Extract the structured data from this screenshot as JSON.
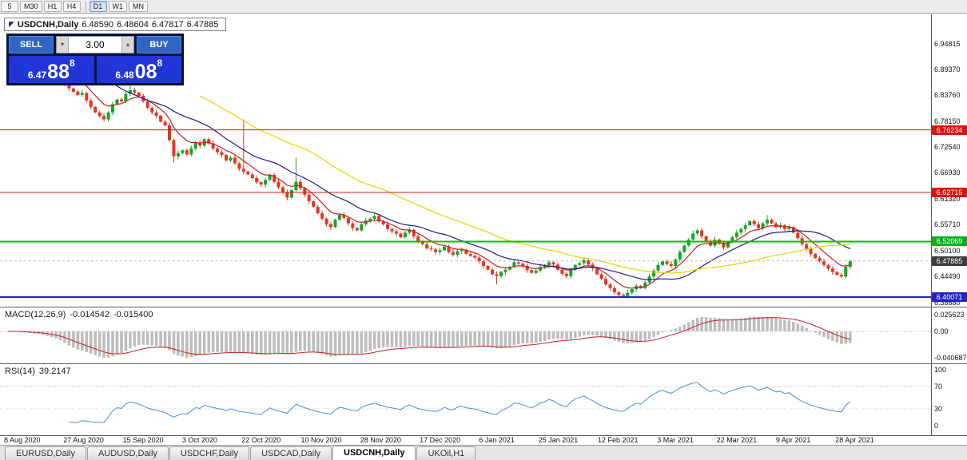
{
  "toolbar": {
    "timeframes": [
      {
        "label": "5",
        "active": false,
        "sep_before": false
      },
      {
        "label": "M30",
        "active": false,
        "sep_before": false
      },
      {
        "label": "H1",
        "active": false,
        "sep_before": false
      },
      {
        "label": "H4",
        "active": false,
        "sep_before": false
      },
      {
        "label": "D1",
        "active": true,
        "sep_before": true
      },
      {
        "label": "W1",
        "active": false,
        "sep_before": false
      },
      {
        "label": "MN",
        "active": false,
        "sep_before": false
      }
    ]
  },
  "icons": {
    "volume_up": "▴",
    "volume_down": "▾",
    "window_restore": "◤"
  },
  "chart_header": {
    "symbol_period": "USDCNH,Daily",
    "open": "6.48590",
    "high": "6.48604",
    "low": "6.47817",
    "close": "6.47885"
  },
  "trade_panel": {
    "sell_label": "SELL",
    "buy_label": "BUY",
    "volume": "3.00",
    "sell_price": {
      "big_prefix": "6.47",
      "big": "88",
      "sup": "8"
    },
    "buy_price": {
      "big_prefix": "6.48",
      "big": "08",
      "sup": "8"
    }
  },
  "price_axis": {
    "labels": [
      "6.94815",
      "6.89370",
      "6.83760",
      "6.78150",
      "6.72540",
      "6.66930",
      "6.61320",
      "6.55710",
      "6.50100",
      "6.44490",
      "6.38880"
    ],
    "badges": [
      {
        "value": "6.76234",
        "color": "#e01010",
        "type": "resistance-line",
        "interactable": true
      },
      {
        "value": "6.62715",
        "color": "#e01010",
        "type": "resistance-line",
        "interactable": true
      },
      {
        "value": "6.52069",
        "color": "#00b31a",
        "type": "support-line",
        "interactable": true
      },
      {
        "value": "6.47885",
        "color": "#3c3c3c",
        "type": "last-price",
        "interactable": false
      },
      {
        "value": "6.40071",
        "color": "#2222cc",
        "type": "support-line",
        "interactable": true
      }
    ]
  },
  "macd_panel": {
    "title": "MACD(12,26,9)",
    "value_main": "-0.014542",
    "value_signal": "-0.015400",
    "axis": [
      "0.025623",
      "0.00",
      "-0.040687"
    ],
    "axis_max": 0.025623,
    "axis_min": -0.040687
  },
  "rsi_panel": {
    "title": "RSI(14)",
    "value": "39.2147",
    "axis": [
      "100",
      "70",
      "30",
      "0"
    ],
    "levels": [
      70,
      30
    ]
  },
  "date_axis": {
    "labels": [
      "8 Aug 2020",
      "27 Aug 2020",
      "15 Sep 2020",
      "3 Oct 2020",
      "22 Oct 2020",
      "10 Nov 2020",
      "28 Nov 2020",
      "17 Dec 2020",
      "6 Jan 2021",
      "25 Jan 2021",
      "12 Feb 2021",
      "3 Mar 2021",
      "22 Mar 2021",
      "9 Apr 2021",
      "28 Apr 2021"
    ]
  },
  "tabs": {
    "items": [
      {
        "label": "EURUSD,Daily"
      },
      {
        "label": "AUDUSD,Daily"
      },
      {
        "label": "USDCHF,Daily"
      },
      {
        "label": "USDCAD,Daily"
      },
      {
        "label": "USDCNH,Daily"
      },
      {
        "label": "UKOil,H1"
      }
    ],
    "active_index": 4
  },
  "chart_data": {
    "type": "candlestick",
    "symbol": "USDCNH",
    "timeframe": "Daily",
    "x_range": [
      "8 Aug 2020",
      "28 Apr 2021"
    ],
    "y_range": [
      6.3799,
      6.9741
    ],
    "last_price": 6.47885,
    "first_open": 6.968,
    "closes": [
      6.96,
      6.955,
      6.958,
      6.948,
      6.951,
      6.944,
      6.94,
      6.942,
      6.93,
      6.922,
      6.915,
      6.908,
      6.885,
      6.862,
      6.852,
      6.845,
      6.838,
      6.842,
      6.826,
      6.812,
      6.8,
      6.792,
      6.785,
      6.8,
      6.818,
      6.828,
      6.824,
      6.84,
      6.848,
      6.843,
      6.836,
      6.824,
      6.81,
      6.8,
      6.793,
      6.78,
      6.772,
      6.74,
      6.705,
      6.712,
      6.718,
      6.709,
      6.722,
      6.735,
      6.728,
      6.742,
      6.733,
      6.722,
      6.714,
      6.708,
      6.696,
      6.702,
      6.69,
      6.678,
      6.672,
      6.666,
      6.658,
      6.649,
      6.644,
      6.654,
      6.665,
      6.65,
      6.638,
      6.628,
      6.616,
      6.632,
      6.65,
      6.636,
      6.622,
      6.608,
      6.596,
      6.582,
      6.57,
      6.558,
      6.552,
      6.568,
      6.578,
      6.572,
      6.56,
      6.55,
      6.545,
      6.558,
      6.566,
      6.57,
      6.576,
      6.564,
      6.558,
      6.548,
      6.543,
      6.538,
      6.53,
      6.54,
      6.546,
      6.532,
      6.522,
      6.515,
      6.506,
      6.504,
      6.498,
      6.502,
      6.51,
      6.498,
      6.492,
      6.5,
      6.503,
      6.494,
      6.49,
      6.486,
      6.478,
      6.468,
      6.46,
      6.45,
      6.446,
      6.455,
      6.46,
      6.466,
      6.476,
      6.473,
      6.468,
      6.459,
      6.453,
      6.458,
      6.466,
      6.469,
      6.476,
      6.471,
      6.46,
      6.451,
      6.446,
      6.459,
      6.47,
      6.474,
      6.48,
      6.471,
      6.463,
      6.45,
      6.44,
      6.428,
      6.42,
      6.411,
      6.405,
      6.402,
      6.41,
      6.418,
      6.425,
      6.42,
      6.432,
      6.445,
      6.458,
      6.47,
      6.478,
      6.472,
      6.468,
      6.482,
      6.498,
      6.512,
      6.525,
      6.538,
      6.545,
      6.532,
      6.522,
      6.512,
      6.525,
      6.518,
      6.508,
      6.52,
      6.53,
      6.54,
      6.548,
      6.556,
      6.565,
      6.558,
      6.55,
      6.56,
      6.568,
      6.56,
      6.552,
      6.556,
      6.548,
      6.552,
      6.54,
      6.528,
      6.515,
      6.505,
      6.494,
      6.485,
      6.478,
      6.47,
      6.462,
      6.455,
      6.449,
      6.445,
      6.466,
      6.4789
    ],
    "wick_overrides": {
      "28": {
        "high": 6.878
      },
      "38": {
        "low": 6.692
      },
      "54": {
        "high": 6.785
      },
      "66": {
        "high": 6.702
      },
      "112": {
        "low": 6.428
      },
      "140": {
        "low": 6.399
      },
      "174": {
        "high": 6.578
      }
    },
    "hlines": [
      {
        "price": 6.76234,
        "color": "#e01010",
        "width": 1
      },
      {
        "price": 6.62715,
        "color": "#e01010",
        "width": 1
      },
      {
        "price": 6.52069,
        "color": "#00c000",
        "width": 2
      },
      {
        "price": 6.40071,
        "color": "#2222cc",
        "width": 2
      }
    ],
    "overlays": [
      {
        "name": "ma-fast",
        "type": "ema",
        "period": 8,
        "color": "#c42020"
      },
      {
        "name": "ma-mid",
        "type": "sma",
        "period": 20,
        "color": "#1c1c8e"
      },
      {
        "name": "ma-slow",
        "type": "sma",
        "period": 45,
        "color": "#e8d400"
      }
    ],
    "candle_colors": {
      "up": "#14a52a",
      "down": "#e4361f"
    },
    "macd": {
      "fast": 12,
      "slow": 26,
      "signal": 9,
      "hist_color": "#bdbdbd",
      "signal_color": "#c42020"
    },
    "rsi": {
      "period": 14,
      "color": "#4a8fd4"
    }
  }
}
